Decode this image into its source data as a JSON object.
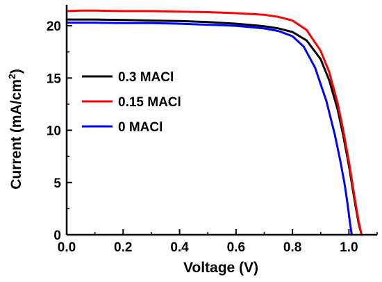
{
  "chart_data": {
    "type": "line",
    "xlabel": "Voltage (V)",
    "ylabel": "Current (mA/cm",
    "ylabel_superscript": "2",
    "ylabel_suffix": ")",
    "xlim": [
      0.0,
      1.1
    ],
    "ylim": [
      0,
      22
    ],
    "x_ticks": [
      0.0,
      0.2,
      0.4,
      0.6,
      0.8,
      1.0
    ],
    "x_tick_labels": [
      "0.0",
      "0.2",
      "0.4",
      "0.6",
      "0.8",
      "1.0"
    ],
    "y_ticks": [
      0,
      5,
      10,
      15,
      20
    ],
    "y_tick_labels": [
      "0",
      "5",
      "10",
      "15",
      "20"
    ],
    "grid": false,
    "legend_position": "middle-left",
    "series": [
      {
        "name": "0.3 MACl",
        "color": "#000000",
        "x": [
          0.0,
          0.1,
          0.2,
          0.3,
          0.4,
          0.5,
          0.6,
          0.7,
          0.75,
          0.8,
          0.85,
          0.9,
          0.93,
          0.96,
          0.98,
          1.0,
          1.02,
          1.035,
          1.045
        ],
        "y": [
          20.6,
          20.6,
          20.55,
          20.5,
          20.45,
          20.35,
          20.2,
          19.95,
          19.75,
          19.4,
          18.6,
          16.8,
          14.8,
          12.0,
          9.5,
          6.6,
          3.3,
          1.0,
          0.0
        ]
      },
      {
        "name": "0.15 MACl",
        "color": "#ff0000",
        "x": [
          0.0,
          0.05,
          0.1,
          0.2,
          0.3,
          0.4,
          0.5,
          0.6,
          0.7,
          0.75,
          0.8,
          0.85,
          0.9,
          0.93,
          0.96,
          0.98,
          1.0,
          1.02,
          1.035,
          1.045
        ],
        "y": [
          21.4,
          21.45,
          21.45,
          21.4,
          21.4,
          21.35,
          21.3,
          21.2,
          21.05,
          20.85,
          20.5,
          19.6,
          17.6,
          15.6,
          12.6,
          10.0,
          7.0,
          3.6,
          1.2,
          0.0
        ]
      },
      {
        "name": "0 MACl",
        "color": "#0000ff",
        "x": [
          0.0,
          0.1,
          0.2,
          0.3,
          0.4,
          0.5,
          0.6,
          0.7,
          0.75,
          0.8,
          0.84,
          0.88,
          0.92,
          0.95,
          0.97,
          0.985,
          0.995,
          1.003,
          1.01
        ],
        "y": [
          20.3,
          20.3,
          20.25,
          20.25,
          20.2,
          20.1,
          20.0,
          19.75,
          19.5,
          19.0,
          18.0,
          16.0,
          12.8,
          9.6,
          7.0,
          4.8,
          3.0,
          1.3,
          0.0
        ]
      }
    ]
  }
}
